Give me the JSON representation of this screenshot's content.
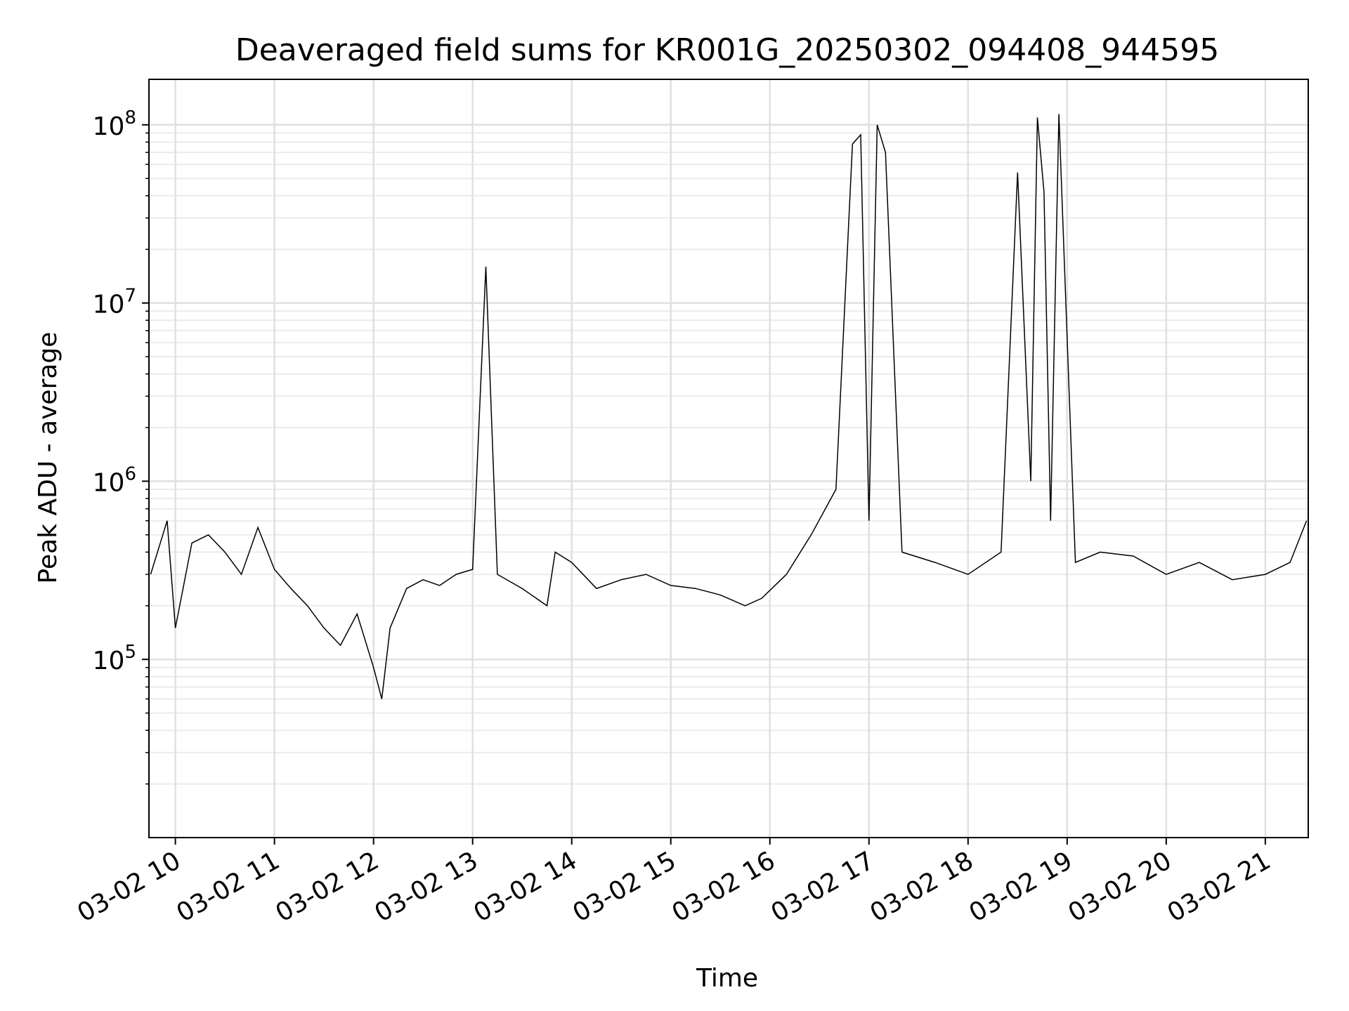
{
  "chart_data": {
    "type": "line",
    "title": "Deaveraged field sums for KR001G_20250302_094408_944595",
    "xlabel": "Time",
    "ylabel": "Peak ADU - average",
    "x_scale": "time",
    "y_scale": "log",
    "xlim": [
      "03-02 09:44",
      "03-02 21:26"
    ],
    "ylim": [
      10000,
      180000000
    ],
    "grid": true,
    "line_color": "#000000",
    "x_ticks": [
      "03-02 10",
      "03-02 11",
      "03-02 12",
      "03-02 13",
      "03-02 14",
      "03-02 15",
      "03-02 16",
      "03-02 17",
      "03-02 18",
      "03-02 19",
      "03-02 20",
      "03-02 21"
    ],
    "y_ticks": [
      {
        "base": "10",
        "exp": "5"
      },
      {
        "base": "10",
        "exp": "6"
      },
      {
        "base": "10",
        "exp": "7"
      },
      {
        "base": "10",
        "exp": "8"
      }
    ],
    "series": [
      {
        "x": [
          "03-02 09:45",
          "03-02 09:55",
          "03-02 10:00",
          "03-02 10:10",
          "03-02 10:20",
          "03-02 10:30",
          "03-02 10:40",
          "03-02 10:50",
          "03-02 11:00",
          "03-02 11:10",
          "03-02 11:20",
          "03-02 11:30",
          "03-02 11:40",
          "03-02 11:50",
          "03-02 12:00",
          "03-02 12:05",
          "03-02 12:10",
          "03-02 12:20",
          "03-02 12:30",
          "03-02 12:40",
          "03-02 12:50",
          "03-02 13:00",
          "03-02 13:08",
          "03-02 13:15",
          "03-02 13:30",
          "03-02 13:45",
          "03-02 13:50",
          "03-02 14:00",
          "03-02 14:15",
          "03-02 14:30",
          "03-02 14:45",
          "03-02 15:00",
          "03-02 15:15",
          "03-02 15:30",
          "03-02 15:45",
          "03-02 15:55",
          "03-02 16:10",
          "03-02 16:25",
          "03-02 16:40",
          "03-02 16:50",
          "03-02 16:55",
          "03-02 17:00",
          "03-02 17:05",
          "03-02 17:10",
          "03-02 17:20",
          "03-02 17:40",
          "03-02 18:00",
          "03-02 18:20",
          "03-02 18:30",
          "03-02 18:38",
          "03-02 18:42",
          "03-02 18:46",
          "03-02 18:50",
          "03-02 18:55",
          "03-02 19:05",
          "03-02 19:20",
          "03-02 19:40",
          "03-02 20:00",
          "03-02 20:20",
          "03-02 20:40",
          "03-02 21:00",
          "03-02 21:15",
          "03-02 21:25"
        ],
        "y": [
          300000,
          600000,
          150000,
          450000,
          500000,
          400000,
          300000,
          550000,
          320000,
          250000,
          200000,
          150000,
          120000,
          180000,
          90000,
          60000,
          150000,
          250000,
          280000,
          260000,
          300000,
          320000,
          16000000,
          300000,
          250000,
          200000,
          400000,
          350000,
          250000,
          280000,
          300000,
          260000,
          250000,
          230000,
          200000,
          220000,
          300000,
          500000,
          900000,
          78000000,
          88000000,
          600000,
          100000000,
          70000000,
          400000,
          350000,
          300000,
          400000,
          54000000,
          1000000,
          110000000,
          42000000,
          600000,
          115000000,
          350000,
          400000,
          380000,
          300000,
          350000,
          280000,
          300000,
          350000,
          600000
        ]
      }
    ]
  }
}
